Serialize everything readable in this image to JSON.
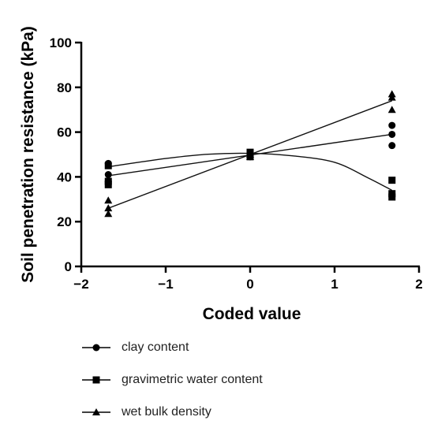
{
  "chart_data": {
    "type": "scatter",
    "xlabel": "Coded value",
    "ylabel": "Soil penetration resistance (kPa)",
    "xlim": [
      -2,
      2
    ],
    "ylim": [
      0,
      100
    ],
    "x_ticks": [
      -2,
      -1,
      0,
      1,
      2
    ],
    "x_tick_labels": [
      "−2",
      "−1",
      "0",
      "1",
      "2"
    ],
    "y_ticks": [
      0,
      20,
      40,
      60,
      80,
      100
    ],
    "y_tick_labels": [
      "0",
      "20",
      "40",
      "60",
      "80",
      "100"
    ],
    "grid": false,
    "legend_position": "bottom",
    "series": [
      {
        "name": "clay content",
        "marker": "circle",
        "points": [
          [
            -1.68,
            46
          ],
          [
            -1.68,
            41
          ],
          [
            -1.68,
            38
          ],
          [
            0,
            49
          ],
          [
            0,
            50
          ],
          [
            1.68,
            63
          ],
          [
            1.68,
            59
          ],
          [
            1.68,
            54
          ]
        ],
        "fit": "linear",
        "fit_line": [
          [
            -1.68,
            40.5
          ],
          [
            1.68,
            59
          ]
        ]
      },
      {
        "name": "gravimetric water content",
        "marker": "square",
        "points": [
          [
            -1.68,
            45
          ],
          [
            -1.68,
            38
          ],
          [
            -1.68,
            36.5
          ],
          [
            0,
            51
          ],
          [
            0,
            49
          ],
          [
            1.68,
            38.5
          ],
          [
            1.68,
            32.5
          ],
          [
            1.68,
            31
          ]
        ],
        "fit": "quadratic",
        "fit_line": [
          [
            -1.68,
            44.5
          ],
          [
            -1.0,
            48.2
          ],
          [
            -0.5,
            50.1
          ],
          [
            0,
            50.5
          ],
          [
            0.5,
            49.4
          ],
          [
            1.0,
            46.5
          ],
          [
            1.4,
            39.5
          ],
          [
            1.68,
            34
          ]
        ]
      },
      {
        "name": "wet bulk density",
        "marker": "triangle",
        "points": [
          [
            -1.68,
            29.5
          ],
          [
            -1.68,
            26
          ],
          [
            -1.68,
            23.5
          ],
          [
            0,
            50
          ],
          [
            0,
            49
          ],
          [
            1.68,
            77
          ],
          [
            1.68,
            75.5
          ],
          [
            1.68,
            70
          ]
        ],
        "fit": "linear",
        "fit_line": [
          [
            -1.68,
            26
          ],
          [
            1.68,
            74
          ]
        ]
      }
    ]
  }
}
